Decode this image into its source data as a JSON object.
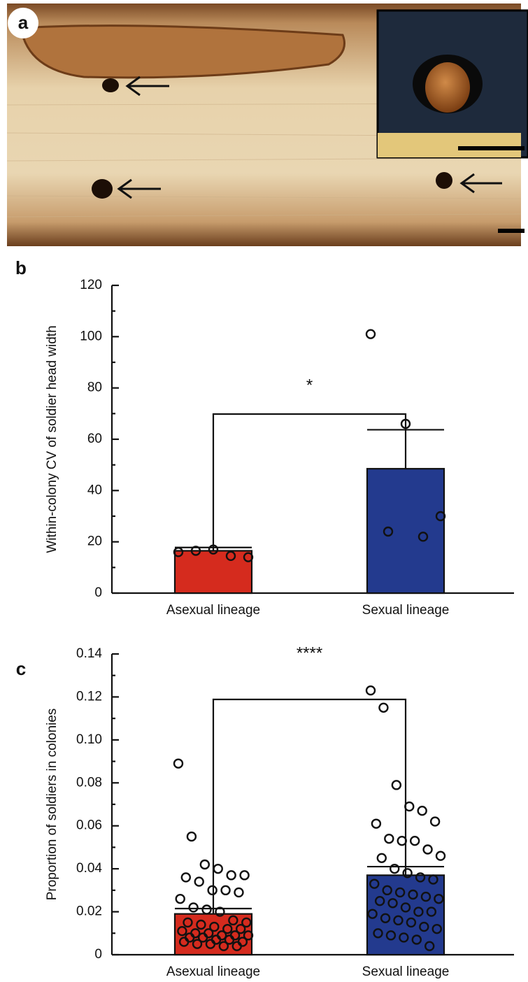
{
  "photo": {
    "label": "a"
  },
  "chart_data": [
    {
      "type": "bar",
      "panel_label": "b",
      "y_label": "Within-colony CV of soldier head width",
      "categories": [
        "Asexual lineage",
        "Sexual lineage"
      ],
      "values": [
        16.5,
        48.5
      ],
      "errors": [
        1.3,
        15.2
      ],
      "colors": [
        "#d52b1e",
        "#233a8e"
      ],
      "points": [
        [
          16,
          17,
          14,
          16.5,
          14.5
        ],
        [
          101,
          66,
          30,
          24,
          22
        ]
      ],
      "significance": "*",
      "ylim": [
        0,
        120
      ],
      "yticks": [
        0,
        20,
        40,
        60,
        80,
        100,
        120
      ],
      "yminorticks": [
        10,
        30,
        50,
        70,
        90,
        110
      ]
    },
    {
      "type": "bar",
      "panel_label": "c",
      "y_label": "Proportion of soldiers in colonies",
      "categories": [
        "Asexual lineage",
        "Sexual lineage"
      ],
      "values": [
        0.019,
        0.037
      ],
      "errors": [
        0.0025,
        0.004
      ],
      "colors": [
        "#d52b1e",
        "#233a8e"
      ],
      "points": [
        [
          0.089,
          0.055,
          0.042,
          0.04,
          0.037,
          0.037,
          0.036,
          0.034,
          0.03,
          0.03,
          0.029,
          0.026,
          0.022,
          0.021,
          0.02,
          0.016,
          0.015,
          0.015,
          0.014,
          0.013,
          0.012,
          0.012,
          0.011,
          0.01,
          0.01,
          0.009,
          0.009,
          0.009,
          0.008,
          0.008,
          0.007,
          0.007,
          0.006,
          0.006,
          0.005,
          0.005,
          0.004,
          0.004
        ],
        [
          0.123,
          0.115,
          0.079,
          0.069,
          0.067,
          0.062,
          0.061,
          0.054,
          0.053,
          0.053,
          0.049,
          0.046,
          0.045,
          0.04,
          0.038,
          0.036,
          0.035,
          0.033,
          0.03,
          0.029,
          0.028,
          0.027,
          0.026,
          0.025,
          0.024,
          0.022,
          0.02,
          0.02,
          0.019,
          0.017,
          0.016,
          0.015,
          0.013,
          0.012,
          0.01,
          0.009,
          0.008,
          0.007,
          0.004
        ]
      ],
      "significance": "****",
      "ylim": [
        0,
        0.14
      ],
      "yticks": [
        0,
        0.02,
        0.04,
        0.06,
        0.08,
        {
          "value": 0.1,
          "label": "0.10"
        },
        0.12,
        0.14
      ],
      "yminorticks": [
        0.01,
        0.03,
        0.05,
        0.07,
        0.09,
        0.11,
        0.13
      ]
    }
  ]
}
